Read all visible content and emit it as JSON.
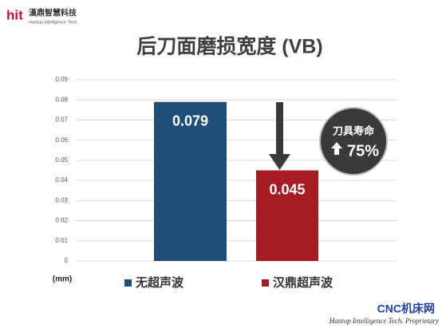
{
  "logo": {
    "brand": "hit",
    "name": "漢鼎智慧科技",
    "tagline": "Hantop Intelligence Tech."
  },
  "chart_data": {
    "type": "bar",
    "title": "后刀面磨损宽度 (VB)",
    "y_unit": "(mm)",
    "series": [
      {
        "name": "无超声波",
        "color": "#1f4e79",
        "values": [
          0.079
        ]
      },
      {
        "name": "汉鼎超声波",
        "color": "#a51c24",
        "values": [
          0.045
        ]
      }
    ],
    "ylim": [
      0,
      0.09
    ],
    "yticks": [
      0,
      0.01,
      0.02,
      0.03,
      0.04,
      0.05,
      0.06,
      0.07,
      0.08,
      0.09
    ],
    "grid": true,
    "annotation": {
      "title": "刀具寿命",
      "text": "75%"
    }
  },
  "footer": {
    "site": "CNC机床网",
    "note": "Hantop Intelligence Tech. Proprietary"
  }
}
